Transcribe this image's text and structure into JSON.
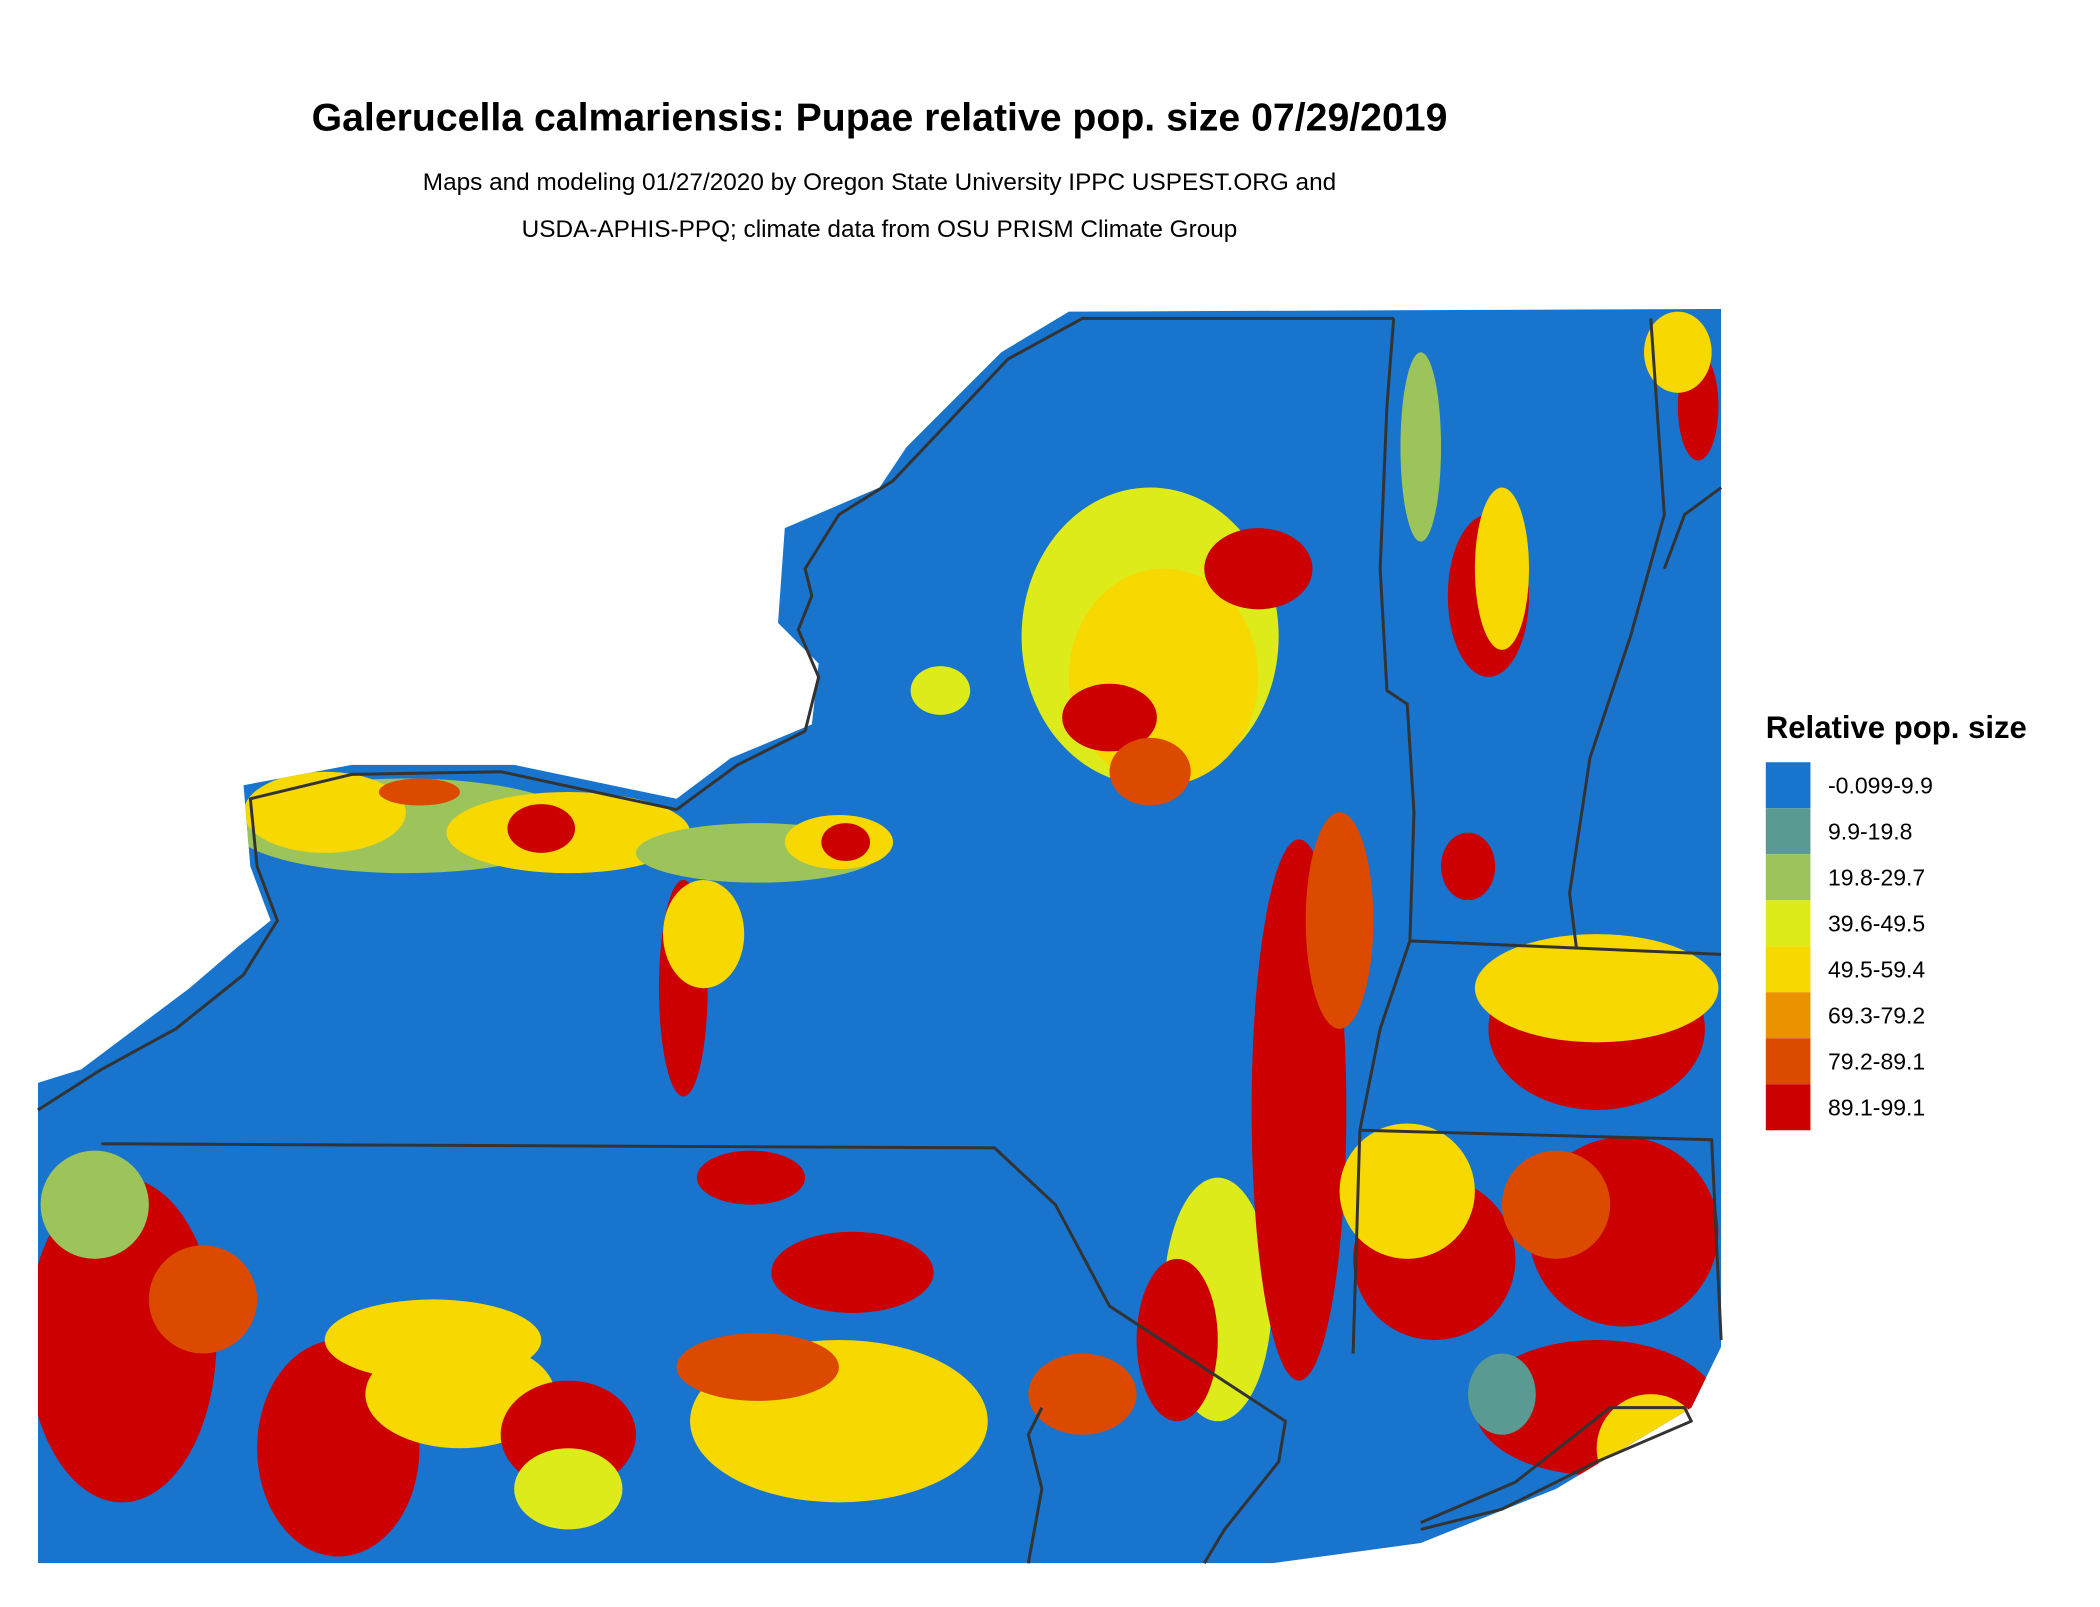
{
  "chart_data": {
    "type": "map",
    "title": "Galerucella calmariensis: Pupae relative pop. size 07/29/2019",
    "subtitle_lines": [
      "Maps and modeling 01/27/2020 by Oregon State University IPPC USPEST.ORG and",
      "USDA-APHIS-PPQ; climate data from OSU PRISM Climate Group"
    ],
    "legend": {
      "title": "Relative pop. size",
      "placement": "right",
      "classes": [
        {
          "label": "-0.099-9.9",
          "color": "#1874CD"
        },
        {
          "label": "9.9-19.8",
          "color": "#5A9A93"
        },
        {
          "label": "19.8-29.7",
          "color": "#9DC45A"
        },
        {
          "label": "39.6-49.5",
          "color": "#DDEB1A"
        },
        {
          "label": "49.5-59.4",
          "color": "#F7D800"
        },
        {
          "label": "69.3-79.2",
          "color": "#EA9200"
        },
        {
          "label": "79.2-89.1",
          "color": "#DC4A00"
        },
        {
          "label": "89.1-99.1",
          "color": "#CC0000"
        }
      ]
    }
  }
}
